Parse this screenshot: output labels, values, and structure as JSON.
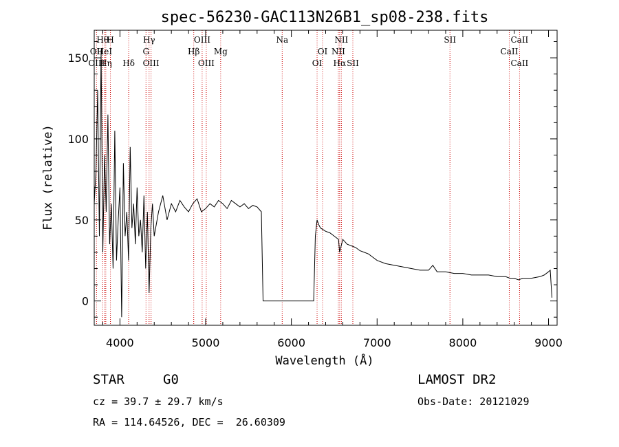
{
  "chart_data": {
    "type": "line",
    "title": "spec-56230-GAC113N26B1_sp08-238.fits",
    "xlabel": "Wavelength (Å)",
    "ylabel": "Flux (relative)",
    "xlim": [
      3700,
      9100
    ],
    "ylim": [
      -15,
      167
    ],
    "x_ticks": [
      4000,
      5000,
      6000,
      7000,
      8000,
      9000
    ],
    "y_ticks": [
      0,
      50,
      100,
      150
    ],
    "grid": false,
    "line_color": "#000000",
    "marker_color": "#cc0000",
    "series": [
      {
        "x": [
          3700,
          3720,
          3740,
          3760,
          3780,
          3800,
          3820,
          3840,
          3860,
          3880,
          3900,
          3920,
          3940,
          3960,
          3980,
          4000,
          4020,
          4040,
          4060,
          4080,
          4100,
          4120,
          4140,
          4160,
          4180,
          4200,
          4220,
          4240,
          4260,
          4280,
          4300,
          4320,
          4340,
          4360,
          4380,
          4400,
          4450,
          4500,
          4550,
          4600,
          4650,
          4700,
          4750,
          4800,
          4850,
          4900,
          4950,
          5000,
          5050,
          5100,
          5150,
          5200,
          5250,
          5300,
          5350,
          5400,
          5450,
          5500,
          5550,
          5600,
          5650,
          5670,
          5700,
          5800,
          5900,
          6000,
          6100,
          6200,
          6260,
          6280,
          6300,
          6320,
          6340,
          6400,
          6450,
          6500,
          6550,
          6563,
          6600,
          6650,
          6700,
          6750,
          6800,
          6850,
          6900,
          6950,
          7000,
          7100,
          7200,
          7300,
          7400,
          7500,
          7600,
          7650,
          7700,
          7800,
          7900,
          8000,
          8100,
          8200,
          8300,
          8400,
          8500,
          8550,
          8600,
          8650,
          8700,
          8800,
          8900,
          8950,
          9000,
          9020,
          9040
        ],
        "values": [
          60,
          80,
          130,
          40,
          155,
          30,
          90,
          55,
          115,
          35,
          60,
          20,
          105,
          25,
          50,
          70,
          -10,
          85,
          40,
          55,
          25,
          95,
          45,
          60,
          35,
          70,
          40,
          50,
          30,
          65,
          20,
          55,
          5,
          45,
          60,
          40,
          55,
          65,
          50,
          60,
          55,
          62,
          58,
          55,
          60,
          63,
          55,
          57,
          60,
          58,
          62,
          60,
          57,
          62,
          60,
          58,
          60,
          57,
          59,
          58,
          55,
          0,
          0,
          0,
          0,
          0,
          0,
          0,
          0,
          40,
          50,
          47,
          45,
          43,
          42,
          40,
          38,
          30,
          38,
          35,
          34,
          33,
          31,
          30,
          29,
          27,
          25,
          23,
          22,
          21,
          20,
          19,
          19,
          22,
          18,
          18,
          17,
          17,
          16,
          16,
          16,
          15,
          15,
          14,
          14,
          13,
          14,
          14,
          15,
          16,
          18,
          19,
          2
        ]
      }
    ],
    "lines": [
      {
        "name": "Hθ",
        "x": 3798,
        "row": 1
      },
      {
        "name": "H",
        "x": 3889,
        "row": 1
      },
      {
        "name": "Hγ",
        "x": 4340,
        "row": 1
      },
      {
        "name": "OIII",
        "x": 4959,
        "row": 1
      },
      {
        "name": "Na",
        "x": 5893,
        "row": 1
      },
      {
        "name": "NII",
        "x": 6583,
        "row": 1
      },
      {
        "name": "SII",
        "x": 7850,
        "row": 1
      },
      {
        "name": "CaII",
        "x": 8662,
        "row": 1
      },
      {
        "name": "OII",
        "x": 3727,
        "row": 2
      },
      {
        "name": "HeI",
        "x": 3820,
        "row": 2
      },
      {
        "name": "G",
        "x": 4304,
        "row": 2
      },
      {
        "name": "Hβ",
        "x": 4861,
        "row": 2
      },
      {
        "name": "Mg",
        "x": 5175,
        "row": 2
      },
      {
        "name": "OI",
        "x": 6364,
        "row": 2
      },
      {
        "name": "NII",
        "x": 6548,
        "row": 2
      },
      {
        "name": "CaII",
        "x": 8542,
        "row": 2
      },
      {
        "name": "OIII",
        "x": 3727,
        "row": 3
      },
      {
        "name": "Hη",
        "x": 3835,
        "row": 3
      },
      {
        "name": "Hδ",
        "x": 4102,
        "row": 3
      },
      {
        "name": "OIII",
        "x": 4363,
        "row": 3
      },
      {
        "name": "OIII",
        "x": 5007,
        "row": 3
      },
      {
        "name": "OI",
        "x": 6300,
        "row": 3
      },
      {
        "name": "Hα",
        "x": 6563,
        "row": 3
      },
      {
        "name": "SII",
        "x": 6717,
        "row": 3
      },
      {
        "name": "CaII",
        "x": 8662,
        "row": 3
      }
    ]
  },
  "info": {
    "object_class": "STAR",
    "subclass": "G0",
    "survey": "LAMOST DR2",
    "cz": "cz = 39.7 ± 29.7 km/s",
    "obs_date": "Obs-Date: 20121029",
    "coords": "RA = 114.64526, DEC =  26.60309"
  }
}
